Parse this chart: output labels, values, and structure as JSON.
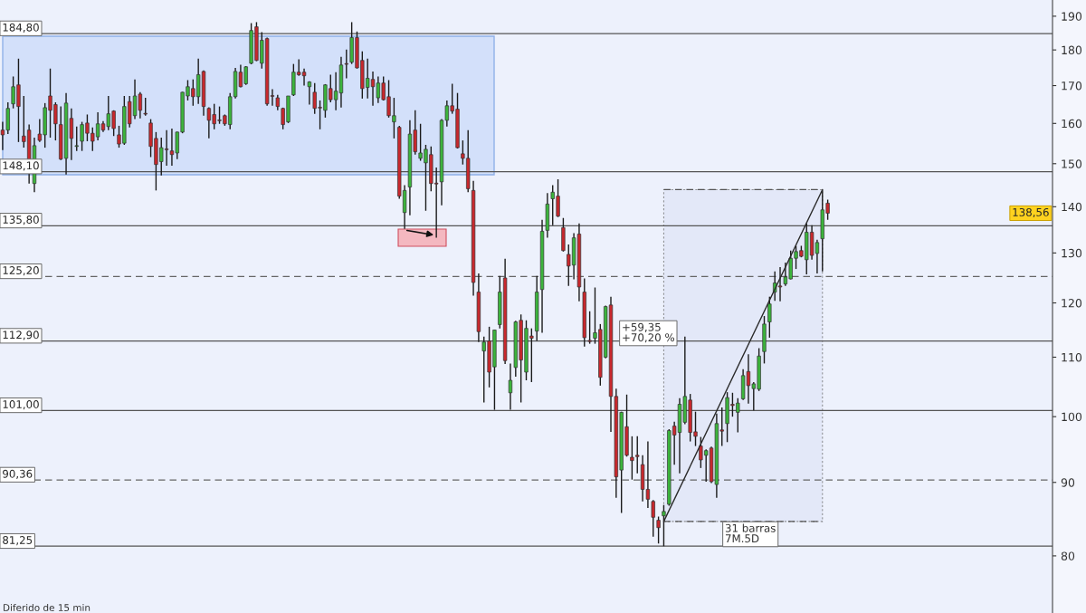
{
  "chart_data": {
    "type": "candlestick",
    "categories": [
      null,
      null,
      null,
      null,
      null,
      null,
      null,
      null,
      null,
      null,
      null,
      null,
      null,
      null,
      null,
      null,
      null,
      null,
      null,
      null,
      null,
      null,
      null,
      null,
      null,
      null,
      null,
      null,
      null,
      null,
      null,
      null,
      null,
      null,
      null,
      null,
      null,
      null,
      null,
      null,
      null,
      null,
      null,
      null,
      null,
      null,
      null,
      null,
      null,
      null,
      null,
      null,
      null,
      null,
      null,
      null,
      null,
      null,
      null,
      null,
      null,
      null,
      null,
      null,
      null,
      null,
      null,
      null,
      null,
      null,
      null,
      null,
      null,
      null,
      null,
      null,
      null,
      null,
      null,
      null,
      null,
      null,
      null,
      null,
      null,
      null,
      null,
      null,
      null,
      null,
      null,
      null,
      null,
      null,
      null,
      null,
      null,
      null,
      null,
      null,
      null,
      null,
      null,
      null,
      null,
      null,
      null,
      null,
      null,
      null,
      null,
      null,
      null,
      null,
      null,
      null,
      null,
      null,
      null,
      null,
      null,
      null,
      null,
      null,
      null,
      null,
      null,
      null,
      null,
      null,
      null,
      null,
      null,
      null,
      null,
      null,
      null,
      null,
      null,
      null,
      null,
      null,
      null,
      null,
      null,
      null,
      null,
      null,
      null,
      null,
      null,
      null,
      null,
      null,
      null,
      null,
      null,
      null,
      null,
      null,
      null,
      null,
      null,
      null,
      null,
      null,
      null,
      null,
      null,
      null,
      null,
      null,
      null,
      null,
      null,
      null,
      null,
      null,
      null,
      null,
      null,
      null,
      null,
      null,
      null,
      null,
      null,
      null,
      null,
      null,
      null,
      null,
      null,
      null,
      null,
      null,
      null,
      null,
      null
    ],
    "ohlc": [
      [
        158.3,
        160.4,
        153.3,
        157.1
      ],
      [
        158.3,
        165.5,
        157.3,
        163.9
      ],
      [
        165.1,
        172.5,
        163.9,
        169.7
      ],
      [
        170.2,
        177.5,
        155.3,
        164.4
      ],
      [
        156.8,
        167.2,
        153.9,
        155.4
      ],
      [
        158.3,
        159.7,
        145.3,
        150.9
      ],
      [
        145.3,
        156.4,
        143.3,
        154.4
      ],
      [
        157.3,
        161.1,
        155.3,
        155.7
      ],
      [
        157.1,
        165.3,
        153.9,
        164.1
      ],
      [
        167.2,
        174.7,
        156.4,
        163.4
      ],
      [
        164.9,
        165.5,
        155.7,
        159.9
      ],
      [
        159.7,
        164.4,
        150.9,
        151.1
      ],
      [
        151.3,
        168.0,
        147.4,
        165.3
      ],
      [
        161.3,
        163.9,
        150.9,
        156.2
      ],
      [
        154.2,
        159.2,
        153.1,
        154.4
      ],
      [
        155.5,
        160.4,
        153.1,
        159.7
      ],
      [
        160.1,
        162.3,
        155.5,
        157.5
      ],
      [
        157.5,
        159.0,
        153.1,
        155.5
      ],
      [
        156.6,
        162.9,
        155.7,
        159.9
      ],
      [
        159.9,
        160.6,
        157.8,
        158.3
      ],
      [
        159.2,
        167.2,
        158.3,
        162.5
      ],
      [
        163.2,
        163.4,
        156.8,
        158.7
      ],
      [
        157.1,
        159.4,
        153.9,
        154.8
      ],
      [
        155.0,
        167.2,
        154.6,
        164.4
      ],
      [
        165.7,
        167.2,
        159.0,
        159.9
      ],
      [
        162.0,
        171.7,
        161.1,
        167.2
      ],
      [
        167.7,
        168.2,
        161.3,
        163.4
      ],
      [
        162.6,
        166.7,
        162.0,
        162.4
      ],
      [
        160.1,
        161.1,
        151.6,
        154.2
      ],
      [
        156.2,
        157.8,
        143.7,
        149.8
      ],
      [
        150.5,
        156.4,
        147.2,
        153.9
      ],
      [
        153.6,
        158.3,
        149.5,
        153.4
      ],
      [
        153.1,
        158.7,
        149.5,
        152.2
      ],
      [
        152.6,
        157.9,
        151.1,
        157.8
      ],
      [
        157.8,
        168.3,
        157.5,
        168.2
      ],
      [
        167.2,
        171.5,
        166.0,
        169.7
      ],
      [
        169.2,
        171.7,
        164.6,
        167.0
      ],
      [
        167.0,
        177.5,
        165.1,
        173.0
      ],
      [
        173.9,
        174.2,
        162.0,
        164.4
      ],
      [
        163.9,
        164.2,
        156.2,
        160.8
      ],
      [
        162.3,
        165.1,
        158.5,
        159.9
      ],
      [
        160.9,
        164.4,
        159.9,
        160.7
      ],
      [
        162.0,
        162.3,
        159.4,
        159.9
      ],
      [
        159.7,
        168.0,
        158.5,
        167.0
      ],
      [
        167.0,
        174.9,
        166.5,
        173.9
      ],
      [
        173.7,
        175.8,
        169.5,
        169.7
      ],
      [
        170.5,
        175.4,
        170.2,
        175.2
      ],
      [
        176.2,
        187.9,
        175.9,
        185.7
      ],
      [
        186.8,
        188.2,
        176.8,
        177.0
      ],
      [
        176.2,
        185.2,
        174.7,
        182.8
      ],
      [
        183.3,
        183.6,
        164.6,
        165.1
      ],
      [
        167.3,
        169.0,
        164.6,
        167.1
      ],
      [
        166.7,
        167.5,
        163.4,
        164.4
      ],
      [
        163.9,
        164.1,
        158.5,
        159.7
      ],
      [
        160.4,
        167.2,
        160.1,
        167.2
      ],
      [
        167.5,
        176.0,
        167.2,
        173.7
      ],
      [
        173.7,
        177.3,
        172.7,
        173.0
      ],
      [
        173.7,
        174.7,
        170.0,
        172.7
      ],
      [
        169.7,
        171.2,
        164.9,
        171.0
      ],
      [
        168.2,
        170.7,
        162.5,
        163.9
      ],
      [
        164.2,
        166.0,
        158.5,
        164.0
      ],
      [
        163.4,
        170.4,
        161.5,
        170.2
      ],
      [
        169.2,
        173.0,
        165.5,
        166.2
      ],
      [
        166.2,
        173.7,
        163.4,
        168.5
      ],
      [
        168.0,
        178.0,
        164.1,
        175.7
      ],
      [
        176.1,
        180.1,
        172.0,
        175.9
      ],
      [
        176.5,
        188.2,
        176.0,
        183.6
      ],
      [
        183.6,
        185.4,
        174.7,
        174.9
      ],
      [
        177.0,
        179.6,
        166.5,
        169.2
      ],
      [
        169.5,
        177.5,
        166.5,
        172.0
      ],
      [
        171.7,
        173.9,
        164.6,
        169.7
      ],
      [
        166.7,
        172.5,
        165.3,
        170.7
      ],
      [
        170.7,
        172.5,
        166.0,
        166.2
      ],
      [
        167.0,
        171.5,
        161.5,
        162.0
      ],
      [
        160.4,
        166.7,
        156.2,
        162.0
      ],
      [
        159.0,
        159.4,
        141.8,
        142.4
      ],
      [
        138.7,
        144.9,
        135.1,
        143.7
      ],
      [
        144.5,
        160.8,
        138.1,
        157.3
      ],
      [
        158.3,
        163.4,
        152.2,
        152.9
      ],
      [
        151.3,
        159.9,
        150.7,
        152.6
      ],
      [
        150.2,
        154.6,
        139.1,
        153.5
      ],
      [
        152.2,
        154.2,
        143.5,
        145.3
      ],
      [
        145.4,
        149.1,
        133.2,
        145.2
      ],
      [
        145.7,
        161.1,
        140.3,
        160.8
      ],
      [
        160.8,
        166.0,
        159.2,
        164.6
      ],
      [
        164.6,
        170.5,
        162.5,
        163.2
      ],
      [
        163.7,
        168.0,
        153.7,
        153.9
      ],
      [
        152.4,
        155.7,
        149.8,
        151.3
      ],
      [
        151.3,
        158.3,
        143.3,
        144.1
      ],
      [
        143.7,
        145.9,
        121.4,
        124.0
      ],
      [
        122.1,
        125.8,
        112.7,
        114.6
      ],
      [
        111.1,
        113.7,
        102.3,
        112.7
      ],
      [
        112.9,
        115.5,
        104.8,
        107.4
      ],
      [
        108.3,
        114.9,
        101.1,
        114.9
      ],
      [
        115.9,
        125.3,
        115.2,
        122.1
      ],
      [
        124.9,
        128.8,
        108.8,
        109.4
      ],
      [
        103.9,
        108.9,
        101.1,
        106.0
      ],
      [
        108.2,
        116.6,
        106.6,
        116.4
      ],
      [
        116.7,
        117.8,
        102.3,
        109.5
      ],
      [
        107.4,
        116.7,
        106.0,
        115.2
      ],
      [
        113.8,
        115.2,
        105.7,
        113.4
      ],
      [
        114.7,
        125.3,
        112.9,
        122.1
      ],
      [
        122.6,
        137.1,
        114.4,
        134.6
      ],
      [
        134.8,
        143.1,
        133.2,
        140.6
      ],
      [
        141.8,
        144.9,
        135.9,
        143.3
      ],
      [
        142.4,
        146.3,
        137.7,
        137.9
      ],
      [
        135.4,
        137.5,
        130.3,
        130.5
      ],
      [
        129.7,
        131.8,
        123.3,
        127.3
      ],
      [
        127.5,
        134.2,
        124.6,
        133.2
      ],
      [
        134.0,
        136.3,
        120.3,
        123.1
      ],
      [
        122.1,
        124.8,
        111.9,
        113.5
      ],
      [
        113.0,
        118.4,
        112.4,
        112.8
      ],
      [
        113.4,
        123.0,
        112.4,
        114.4
      ],
      [
        115.0,
        116.0,
        105.1,
        106.5
      ],
      [
        110.0,
        119.5,
        109.8,
        119.3
      ],
      [
        119.6,
        121.2,
        97.6,
        103.3
      ],
      [
        103.3,
        104.6,
        87.8,
        90.8
      ],
      [
        91.8,
        100.8,
        85.7,
        100.7
      ],
      [
        98.4,
        103.6,
        93.8,
        94.0
      ],
      [
        93.7,
        96.9,
        90.4,
        93.2
      ],
      [
        94.0,
        96.9,
        91.3,
        93.8
      ],
      [
        92.6,
        94.0,
        87.3,
        89.0
      ],
      [
        89.0,
        96.1,
        86.4,
        87.6
      ],
      [
        87.3,
        87.5,
        82.5,
        85.1
      ],
      [
        84.7,
        85.2,
        81.6,
        83.7
      ],
      [
        85.3,
        86.8,
        81.25,
        85.9
      ],
      [
        86.9,
        98.0,
        86.7,
        97.8
      ],
      [
        98.5,
        99.2,
        92.6,
        97.1
      ],
      [
        97.5,
        103.0,
        91.3,
        102.0
      ],
      [
        99.1,
        113.7,
        98.8,
        103.3
      ],
      [
        102.7,
        103.7,
        96.1,
        97.5
      ],
      [
        97.6,
        100.8,
        95.4,
        96.9
      ],
      [
        95.4,
        96.8,
        92.1,
        93.3
      ],
      [
        94.0,
        94.9,
        90.1,
        94.7
      ],
      [
        95.1,
        95.3,
        89.9,
        90.1
      ],
      [
        89.7,
        100.5,
        87.8,
        98.9
      ],
      [
        97.9,
        101.5,
        95.4,
        97.7
      ],
      [
        98.9,
        104.0,
        96.0,
        103.1
      ],
      [
        102.0,
        103.9,
        100.0,
        101.8
      ],
      [
        100.7,
        103.0,
        97.5,
        102.2
      ],
      [
        102.9,
        107.9,
        102.7,
        106.8
      ],
      [
        107.5,
        110.5,
        102.1,
        105.1
      ],
      [
        104.6,
        105.7,
        101.0,
        105.4
      ],
      [
        104.5,
        111.6,
        104.2,
        110.2
      ],
      [
        111.0,
        117.5,
        108.9,
        116.0
      ],
      [
        116.4,
        121.2,
        113.5,
        119.8
      ],
      [
        122.1,
        126.2,
        120.4,
        123.9
      ],
      [
        123.3,
        127.1,
        120.3,
        123.1
      ],
      [
        123.7,
        128.0,
        123.3,
        125.1
      ],
      [
        124.7,
        130.5,
        124.6,
        128.9
      ],
      [
        128.9,
        131.5,
        126.7,
        130.3
      ],
      [
        130.5,
        131.5,
        129.1,
        129.3
      ],
      [
        128.6,
        136.3,
        125.6,
        134.4
      ],
      [
        134.4,
        135.9,
        128.6,
        129.5
      ],
      [
        129.9,
        132.8,
        125.8,
        132.2
      ],
      [
        133.0,
        143.9,
        126.2,
        139.3
      ],
      [
        140.8,
        141.6,
        137.1,
        138.56
      ],
      null,
      null,
      null,
      null,
      null,
      null,
      null,
      null,
      null,
      null,
      null,
      null,
      null,
      null,
      null,
      null,
      null,
      null,
      null,
      null,
      null,
      null,
      null,
      null,
      null,
      null,
      null,
      null,
      null,
      null,
      null,
      null,
      null,
      null,
      null,
      null,
      null,
      null,
      null,
      null,
      null,
      null
    ],
    "colors": [
      "#c8282d",
      "#3cb43c",
      "#3cb43c",
      "#c8282d",
      "#c8282d",
      "#c8282d",
      "#3cb43c",
      "#c8282d",
      "#3cb43c",
      "#c8282d",
      "#c8282d",
      "#c8282d",
      "#3cb43c",
      "#c8282d",
      "#3cb43c",
      "#3cb43c",
      "#c8282d",
      "#c8282d",
      "#3cb43c",
      "#c8282d",
      "#3cb43c",
      "#c8282d",
      "#c8282d",
      "#3cb43c",
      "#c8282d",
      "#3cb43c",
      "#c8282d",
      "#c8282d",
      "#c8282d",
      "#c8282d",
      "#3cb43c",
      "#c8282d",
      "#c8282d",
      "#3cb43c",
      "#3cb43c",
      "#3cb43c",
      "#c8282d",
      "#3cb43c",
      "#c8282d",
      "#c8282d",
      "#c8282d",
      "#c8282d",
      "#c8282d",
      "#3cb43c",
      "#3cb43c",
      "#c8282d",
      "#3cb43c",
      "#3cb43c",
      "#c8282d",
      "#3cb43c",
      "#c8282d",
      "#c8282d",
      "#c8282d",
      "#c8282d",
      "#3cb43c",
      "#3cb43c",
      "#c8282d",
      "#c8282d",
      "#3cb43c",
      "#c8282d",
      "#c8282d",
      "#3cb43c",
      "#c8282d",
      "#3cb43c",
      "#3cb43c",
      "#c8282d",
      "#3cb43c",
      "#c8282d",
      "#c8282d",
      "#3cb43c",
      "#c8282d",
      "#3cb43c",
      "#c8282d",
      "#c8282d",
      "#3cb43c",
      "#c8282d",
      "#3cb43c",
      "#3cb43c",
      "#c8282d",
      "#3cb43c",
      "#3cb43c",
      "#c8282d",
      "#c8282d",
      "#3cb43c",
      "#3cb43c",
      "#c8282d",
      "#c8282d",
      "#c8282d",
      "#c8282d",
      "#c8282d",
      "#c8282d",
      "#3cb43c",
      "#c8282d",
      "#3cb43c",
      "#3cb43c",
      "#c8282d",
      "#3cb43c",
      "#3cb43c",
      "#c8282d",
      "#3cb43c",
      "#c8282d",
      "#3cb43c",
      "#3cb43c",
      "#3cb43c",
      "#3cb43c",
      "#c8282d",
      "#c8282d",
      "#c8282d",
      "#3cb43c",
      "#c8282d",
      "#c8282d",
      "#c8282d",
      "#3cb43c",
      "#c8282d",
      "#3cb43c",
      "#c8282d",
      "#c8282d",
      "#3cb43c",
      "#c8282d",
      "#c8282d",
      "#c8282d",
      "#c8282d",
      "#c8282d",
      "#c8282d",
      "#c8282d",
      "#3cb43c",
      "#3cb43c",
      "#c8282d",
      "#3cb43c",
      "#3cb43c",
      "#c8282d",
      "#c8282d",
      "#c8282d",
      "#3cb43c",
      "#c8282d",
      "#3cb43c",
      "#c8282d",
      "#3cb43c",
      "#c8282d",
      "#3cb43c",
      "#3cb43c",
      "#c8282d",
      "#3cb43c",
      "#3cb43c",
      "#3cb43c",
      "#3cb43c",
      "#3cb43c",
      "#c8282d",
      "#3cb43c",
      "#3cb43c",
      "#3cb43c",
      "#c8282d",
      "#3cb43c",
      "#c8282d",
      "#3cb43c",
      "#3cb43c",
      "#c8282d",
      null,
      null,
      null,
      null,
      null,
      null,
      null,
      null,
      null,
      null,
      null,
      null,
      null,
      null,
      null,
      null,
      null,
      null,
      null,
      null,
      null,
      null,
      null,
      null,
      null,
      null,
      null,
      null,
      null,
      null,
      null,
      null,
      null,
      null,
      null,
      null,
      null,
      null,
      null,
      null,
      null,
      null
    ],
    "series": [
      {
        "type": "line",
        "values": [
          null,
          null,
          null,
          null,
          null,
          null,
          null,
          null,
          null,
          null,
          null,
          null,
          null,
          null,
          null,
          null,
          null,
          null,
          null,
          null,
          null,
          null,
          null,
          null,
          null,
          null,
          null,
          null,
          null,
          null,
          null,
          null,
          null,
          null,
          null,
          null,
          null,
          null,
          null,
          null,
          null,
          null,
          null,
          null,
          null,
          null,
          null,
          null,
          null,
          null,
          null,
          null,
          null,
          null,
          null,
          null,
          null,
          null,
          null,
          null,
          null,
          null,
          null,
          null,
          null,
          null,
          null,
          null,
          null,
          null,
          null,
          null,
          null,
          null,
          null,
          null,
          null,
          null,
          null,
          null,
          null,
          null,
          null,
          null,
          null,
          null,
          null,
          null,
          null,
          null,
          null,
          null,
          null,
          null,
          null,
          null,
          null,
          null,
          null,
          null,
          null,
          null,
          null,
          null,
          null,
          null,
          null,
          null,
          null,
          null,
          null,
          null,
          null,
          null,
          null,
          null,
          null,
          null,
          null,
          null,
          null,
          null,
          null,
          null,
          null,
          84.54,
          null,
          null,
          null,
          null,
          null,
          null,
          null,
          null,
          null,
          null,
          null,
          null,
          null,
          null,
          null,
          null,
          null,
          null,
          null,
          null,
          null,
          null,
          null,
          null,
          null,
          null,
          null,
          null,
          null,
          143.89,
          null,
          null,
          null,
          null,
          null,
          null,
          null,
          null,
          null,
          null,
          null,
          null,
          null,
          null,
          null,
          null,
          null,
          null,
          null,
          null,
          null,
          null,
          null,
          null,
          null,
          null,
          null,
          null,
          null,
          null,
          null,
          null,
          null,
          null,
          null,
          null,
          null,
          null,
          null,
          null,
          null,
          null,
          null
        ],
        "color": "#2b2b2b"
      }
    ],
    "log": "y",
    "ylim": [
      73,
      195
    ],
    "yticks": [
      80,
      90,
      100,
      110,
      120,
      130,
      140,
      150,
      160,
      170,
      180,
      190
    ],
    "tick_labels": "y",
    "ref_lines": [
      {
        "axis": "y",
        "value": 184.8,
        "label": "184,80",
        "color": "#555555",
        "line_style": "solid"
      },
      {
        "axis": "y",
        "value": 148.1,
        "label": "148,10",
        "color": "#555555",
        "line_style": "solid"
      },
      {
        "axis": "y",
        "value": 135.8,
        "label": "135,80",
        "color": "#555555",
        "line_style": "solid"
      },
      {
        "axis": "y",
        "value": 125.2,
        "label": "125,20",
        "color": "#666666",
        "line_style": "dashed"
      },
      {
        "axis": "y",
        "value": 112.9,
        "label": "112,90",
        "color": "#555555",
        "line_style": "solid"
      },
      {
        "axis": "y",
        "value": 101.0,
        "label": "101,00",
        "color": "#555555",
        "line_style": "solid"
      },
      {
        "axis": "y",
        "value": 90.36,
        "label": "90,36",
        "color": "#666666",
        "line_style": "dashed"
      },
      {
        "axis": "y",
        "value": 81.25,
        "label": "81,25",
        "color": "#555555",
        "line_style": "solid"
      }
    ],
    "annotations": [
      "+59,35\n+70,20 %",
      "31 barras\n7M.5D",
      "138,56",
      "Diferido de 15 min"
    ]
  }
}
